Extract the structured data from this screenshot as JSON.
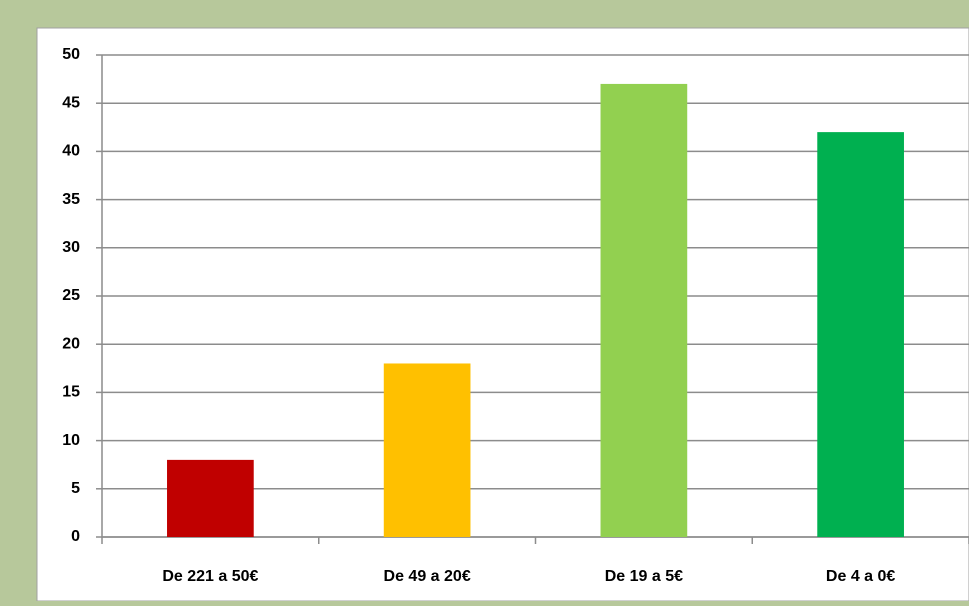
{
  "chart_data": {
    "type": "bar",
    "categories": [
      "De 221 a 50€",
      "De 49 a 20€",
      "De 19 a 5€",
      "De 4 a 0€"
    ],
    "values": [
      8,
      18,
      47,
      42
    ],
    "colors": [
      "#c00000",
      "#ffc000",
      "#92d050",
      "#00b050"
    ],
    "ylim": [
      0,
      50
    ],
    "yticks": [
      0,
      5,
      10,
      15,
      20,
      25,
      30,
      35,
      40,
      45,
      50
    ],
    "grid": true
  }
}
